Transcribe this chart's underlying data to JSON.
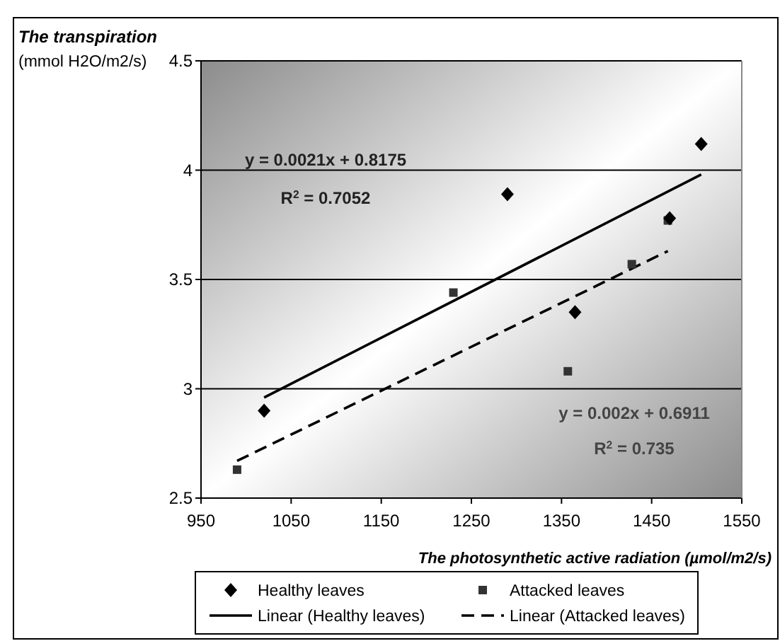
{
  "chart_data": {
    "type": "scatter",
    "title": "The transpiration",
    "ylabel": "(mmol H2O/m2/s)",
    "xlabel": "The photosynthetic active radiation  (µmol/m2/s)",
    "xlim": [
      950,
      1550
    ],
    "xticks": [
      950,
      1050,
      1150,
      1250,
      1350,
      1450,
      1550
    ],
    "ylim": [
      2.5,
      4.5
    ],
    "yticks": [
      2.5,
      3,
      3.5,
      4,
      4.5
    ],
    "grid": "y",
    "legend": "bottom",
    "annotations": [
      "y = 0.0021x + 0.8175",
      "R$^{2}$ = 0.7052",
      "y = 0.002x + 0.6911",
      "R$^{2}$ = 0.735"
    ],
    "series": [
      {
        "name": "Healthy leaves",
        "type": "scatter",
        "marker": "diamond",
        "color": "#000000",
        "x": [
          1020,
          1290,
          1365,
          1470,
          1505
        ],
        "values": [
          2.9,
          3.89,
          3.35,
          3.78,
          4.12
        ]
      },
      {
        "name": "Attacked leaves",
        "type": "scatter",
        "marker": "square",
        "color": "#333333",
        "x": [
          990,
          1230,
          1357,
          1428,
          1468
        ],
        "values": [
          2.63,
          3.44,
          3.08,
          3.57,
          3.77
        ]
      },
      {
        "name": "Linear (Healthy leaves)",
        "type": "line",
        "line_style": "solid",
        "color": "#000000",
        "x": [
          1020,
          1505
        ],
        "values": [
          2.96,
          3.98
        ]
      },
      {
        "name": "Linear (Attacked leaves)",
        "type": "line",
        "line_style": "dashed",
        "color": "#000000",
        "x": [
          990,
          1468
        ],
        "values": [
          2.67,
          3.63
        ]
      }
    ]
  }
}
